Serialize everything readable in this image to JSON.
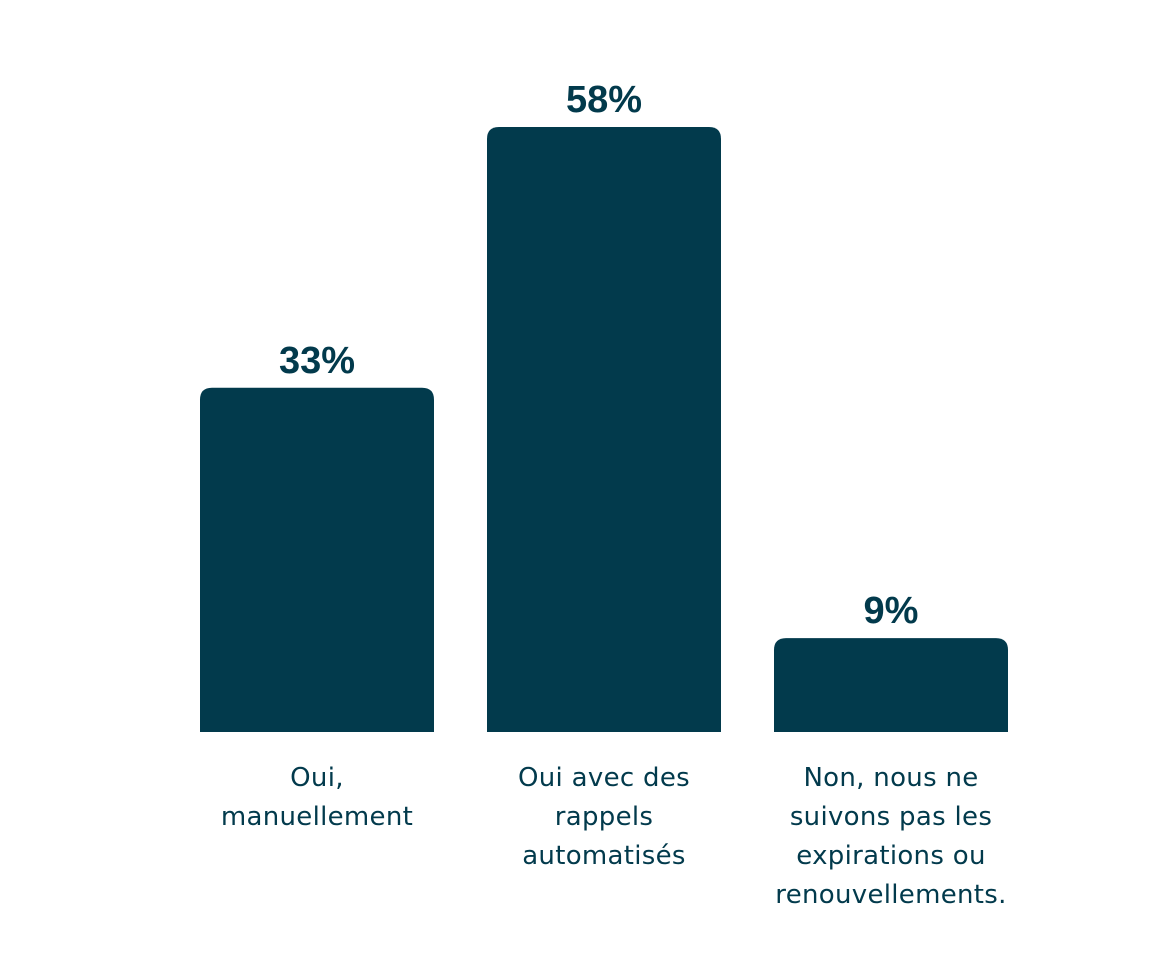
{
  "chart_data": {
    "type": "bar",
    "categories": [
      [
        "Oui,",
        "manuellement"
      ],
      [
        "Oui avec des",
        "rappels",
        "automatisés"
      ],
      [
        "Non, nous ne",
        "suivons pas les",
        "expirations ou",
        "renouvellements."
      ]
    ],
    "values": [
      33,
      58,
      9
    ],
    "value_labels": [
      "33%",
      "58%",
      "9%"
    ],
    "title": "",
    "xlabel": "",
    "ylabel": "",
    "ylim": [
      0,
      58
    ],
    "grid": false,
    "legend": "none",
    "colors": {
      "bar": "#023a4c",
      "text": "#023a4c"
    }
  }
}
